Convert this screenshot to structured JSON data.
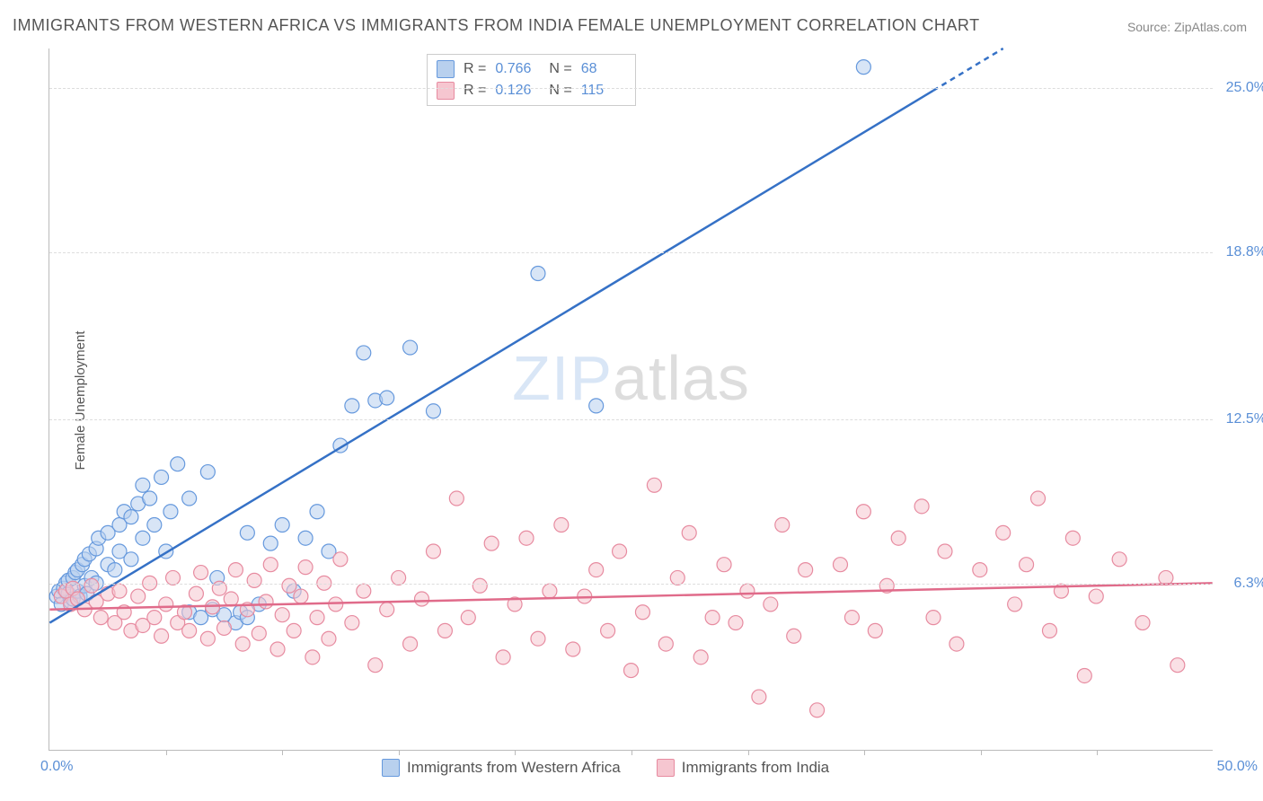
{
  "title": "IMMIGRANTS FROM WESTERN AFRICA VS IMMIGRANTS FROM INDIA FEMALE UNEMPLOYMENT CORRELATION CHART",
  "source": "Source: ZipAtlas.com",
  "y_label": "Female Unemployment",
  "watermark_a": "ZIP",
  "watermark_b": "atlas",
  "chart": {
    "type": "scatter",
    "xlim": [
      0,
      50
    ],
    "ylim": [
      0,
      26.5
    ],
    "x_min_label": "0.0%",
    "x_max_label": "50.0%",
    "y_ticks": [
      6.3,
      12.5,
      18.8,
      25.0
    ],
    "y_tick_labels": [
      "6.3%",
      "12.5%",
      "18.8%",
      "25.0%"
    ],
    "x_tick_positions": [
      5,
      10,
      15,
      20,
      25,
      30,
      35,
      40,
      45
    ],
    "background_color": "#ffffff",
    "grid_color": "#dddddd",
    "series": [
      {
        "name": "Immigrants from Western Africa",
        "color_fill": "#b8d0ee",
        "color_stroke": "#6699dd",
        "line_color": "#3571c6",
        "marker_radius": 8,
        "fill_opacity": 0.55,
        "R": "0.766",
        "N": "68",
        "trend": {
          "x1": 0,
          "y1": 4.8,
          "x2": 41,
          "y2": 26.5,
          "dash_after_x": 38
        },
        "points": [
          [
            0.3,
            5.8
          ],
          [
            0.4,
            6.0
          ],
          [
            0.5,
            5.5
          ],
          [
            0.6,
            6.1
          ],
          [
            0.7,
            6.3
          ],
          [
            0.8,
            5.9
          ],
          [
            0.8,
            6.4
          ],
          [
            0.9,
            5.6
          ],
          [
            1.0,
            6.5
          ],
          [
            1.0,
            5.7
          ],
          [
            1.1,
            6.7
          ],
          [
            1.2,
            6.0
          ],
          [
            1.2,
            6.8
          ],
          [
            1.3,
            5.8
          ],
          [
            1.4,
            7.0
          ],
          [
            1.5,
            6.2
          ],
          [
            1.5,
            7.2
          ],
          [
            1.6,
            5.9
          ],
          [
            1.7,
            7.4
          ],
          [
            1.8,
            6.5
          ],
          [
            2.0,
            6.3
          ],
          [
            2.0,
            7.6
          ],
          [
            2.1,
            8.0
          ],
          [
            2.5,
            7.0
          ],
          [
            2.5,
            8.2
          ],
          [
            2.8,
            6.8
          ],
          [
            3.0,
            8.5
          ],
          [
            3.0,
            7.5
          ],
          [
            3.2,
            9.0
          ],
          [
            3.5,
            7.2
          ],
          [
            3.5,
            8.8
          ],
          [
            3.8,
            9.3
          ],
          [
            4.0,
            8.0
          ],
          [
            4.0,
            10.0
          ],
          [
            4.3,
            9.5
          ],
          [
            4.5,
            8.5
          ],
          [
            4.8,
            10.3
          ],
          [
            5.0,
            7.5
          ],
          [
            5.2,
            9.0
          ],
          [
            5.5,
            10.8
          ],
          [
            6.0,
            5.2
          ],
          [
            6.0,
            9.5
          ],
          [
            6.5,
            5.0
          ],
          [
            6.8,
            10.5
          ],
          [
            7.0,
            5.3
          ],
          [
            7.2,
            6.5
          ],
          [
            7.5,
            5.1
          ],
          [
            8.0,
            4.8
          ],
          [
            8.2,
            5.2
          ],
          [
            8.5,
            5.0
          ],
          [
            8.5,
            8.2
          ],
          [
            9.0,
            5.5
          ],
          [
            9.5,
            7.8
          ],
          [
            10.0,
            8.5
          ],
          [
            10.5,
            6.0
          ],
          [
            11.0,
            8.0
          ],
          [
            11.5,
            9.0
          ],
          [
            12.0,
            7.5
          ],
          [
            12.5,
            11.5
          ],
          [
            13.0,
            13.0
          ],
          [
            13.5,
            15.0
          ],
          [
            14.0,
            13.2
          ],
          [
            14.5,
            13.3
          ],
          [
            15.5,
            15.2
          ],
          [
            16.5,
            12.8
          ],
          [
            21.0,
            18.0
          ],
          [
            23.5,
            13.0
          ],
          [
            35.0,
            25.8
          ]
        ]
      },
      {
        "name": "Immigrants from India",
        "color_fill": "#f6c6d0",
        "color_stroke": "#e78ba0",
        "line_color": "#e06b8a",
        "marker_radius": 8,
        "fill_opacity": 0.55,
        "R": "0.126",
        "N": "115",
        "trend": {
          "x1": 0,
          "y1": 5.3,
          "x2": 50,
          "y2": 6.3
        },
        "points": [
          [
            0.5,
            5.8
          ],
          [
            0.7,
            6.0
          ],
          [
            0.9,
            5.5
          ],
          [
            1.0,
            6.1
          ],
          [
            1.2,
            5.7
          ],
          [
            1.5,
            5.3
          ],
          [
            1.8,
            6.2
          ],
          [
            2.0,
            5.6
          ],
          [
            2.2,
            5.0
          ],
          [
            2.5,
            5.9
          ],
          [
            2.8,
            4.8
          ],
          [
            3.0,
            6.0
          ],
          [
            3.2,
            5.2
          ],
          [
            3.5,
            4.5
          ],
          [
            3.8,
            5.8
          ],
          [
            4.0,
            4.7
          ],
          [
            4.3,
            6.3
          ],
          [
            4.5,
            5.0
          ],
          [
            4.8,
            4.3
          ],
          [
            5.0,
            5.5
          ],
          [
            5.3,
            6.5
          ],
          [
            5.5,
            4.8
          ],
          [
            5.8,
            5.2
          ],
          [
            6.0,
            4.5
          ],
          [
            6.3,
            5.9
          ],
          [
            6.5,
            6.7
          ],
          [
            6.8,
            4.2
          ],
          [
            7.0,
            5.4
          ],
          [
            7.3,
            6.1
          ],
          [
            7.5,
            4.6
          ],
          [
            7.8,
            5.7
          ],
          [
            8.0,
            6.8
          ],
          [
            8.3,
            4.0
          ],
          [
            8.5,
            5.3
          ],
          [
            8.8,
            6.4
          ],
          [
            9.0,
            4.4
          ],
          [
            9.3,
            5.6
          ],
          [
            9.5,
            7.0
          ],
          [
            9.8,
            3.8
          ],
          [
            10.0,
            5.1
          ],
          [
            10.3,
            6.2
          ],
          [
            10.5,
            4.5
          ],
          [
            10.8,
            5.8
          ],
          [
            11.0,
            6.9
          ],
          [
            11.3,
            3.5
          ],
          [
            11.5,
            5.0
          ],
          [
            11.8,
            6.3
          ],
          [
            12.0,
            4.2
          ],
          [
            12.3,
            5.5
          ],
          [
            12.5,
            7.2
          ],
          [
            13.0,
            4.8
          ],
          [
            13.5,
            6.0
          ],
          [
            14.0,
            3.2
          ],
          [
            14.5,
            5.3
          ],
          [
            15.0,
            6.5
          ],
          [
            15.5,
            4.0
          ],
          [
            16.0,
            5.7
          ],
          [
            16.5,
            7.5
          ],
          [
            17.0,
            4.5
          ],
          [
            17.5,
            9.5
          ],
          [
            18.0,
            5.0
          ],
          [
            18.5,
            6.2
          ],
          [
            19.0,
            7.8
          ],
          [
            19.5,
            3.5
          ],
          [
            20.0,
            5.5
          ],
          [
            20.5,
            8.0
          ],
          [
            21.0,
            4.2
          ],
          [
            21.5,
            6.0
          ],
          [
            22.0,
            8.5
          ],
          [
            22.5,
            3.8
          ],
          [
            23.0,
            5.8
          ],
          [
            23.5,
            6.8
          ],
          [
            24.0,
            4.5
          ],
          [
            24.5,
            7.5
          ],
          [
            25.0,
            3.0
          ],
          [
            25.5,
            5.2
          ],
          [
            26.0,
            10.0
          ],
          [
            26.5,
            4.0
          ],
          [
            27.0,
            6.5
          ],
          [
            27.5,
            8.2
          ],
          [
            28.0,
            3.5
          ],
          [
            28.5,
            5.0
          ],
          [
            29.0,
            7.0
          ],
          [
            29.5,
            4.8
          ],
          [
            30.0,
            6.0
          ],
          [
            30.5,
            2.0
          ],
          [
            31.0,
            5.5
          ],
          [
            31.5,
            8.5
          ],
          [
            32.0,
            4.3
          ],
          [
            32.5,
            6.8
          ],
          [
            33.0,
            1.5
          ],
          [
            34.0,
            7.0
          ],
          [
            34.5,
            5.0
          ],
          [
            35.0,
            9.0
          ],
          [
            35.5,
            4.5
          ],
          [
            36.0,
            6.2
          ],
          [
            36.5,
            8.0
          ],
          [
            37.5,
            9.2
          ],
          [
            38.0,
            5.0
          ],
          [
            38.5,
            7.5
          ],
          [
            39.0,
            4.0
          ],
          [
            40.0,
            6.8
          ],
          [
            41.0,
            8.2
          ],
          [
            41.5,
            5.5
          ],
          [
            42.0,
            7.0
          ],
          [
            42.5,
            9.5
          ],
          [
            43.0,
            4.5
          ],
          [
            43.5,
            6.0
          ],
          [
            44.0,
            8.0
          ],
          [
            44.5,
            2.8
          ],
          [
            45.0,
            5.8
          ],
          [
            46.0,
            7.2
          ],
          [
            47.0,
            4.8
          ],
          [
            48.0,
            6.5
          ],
          [
            48.5,
            3.2
          ]
        ]
      }
    ]
  },
  "stats_labels": {
    "R": "R =",
    "N": "N ="
  },
  "legend": {
    "series1": "Immigrants from Western Africa",
    "series2": "Immigrants from India"
  }
}
